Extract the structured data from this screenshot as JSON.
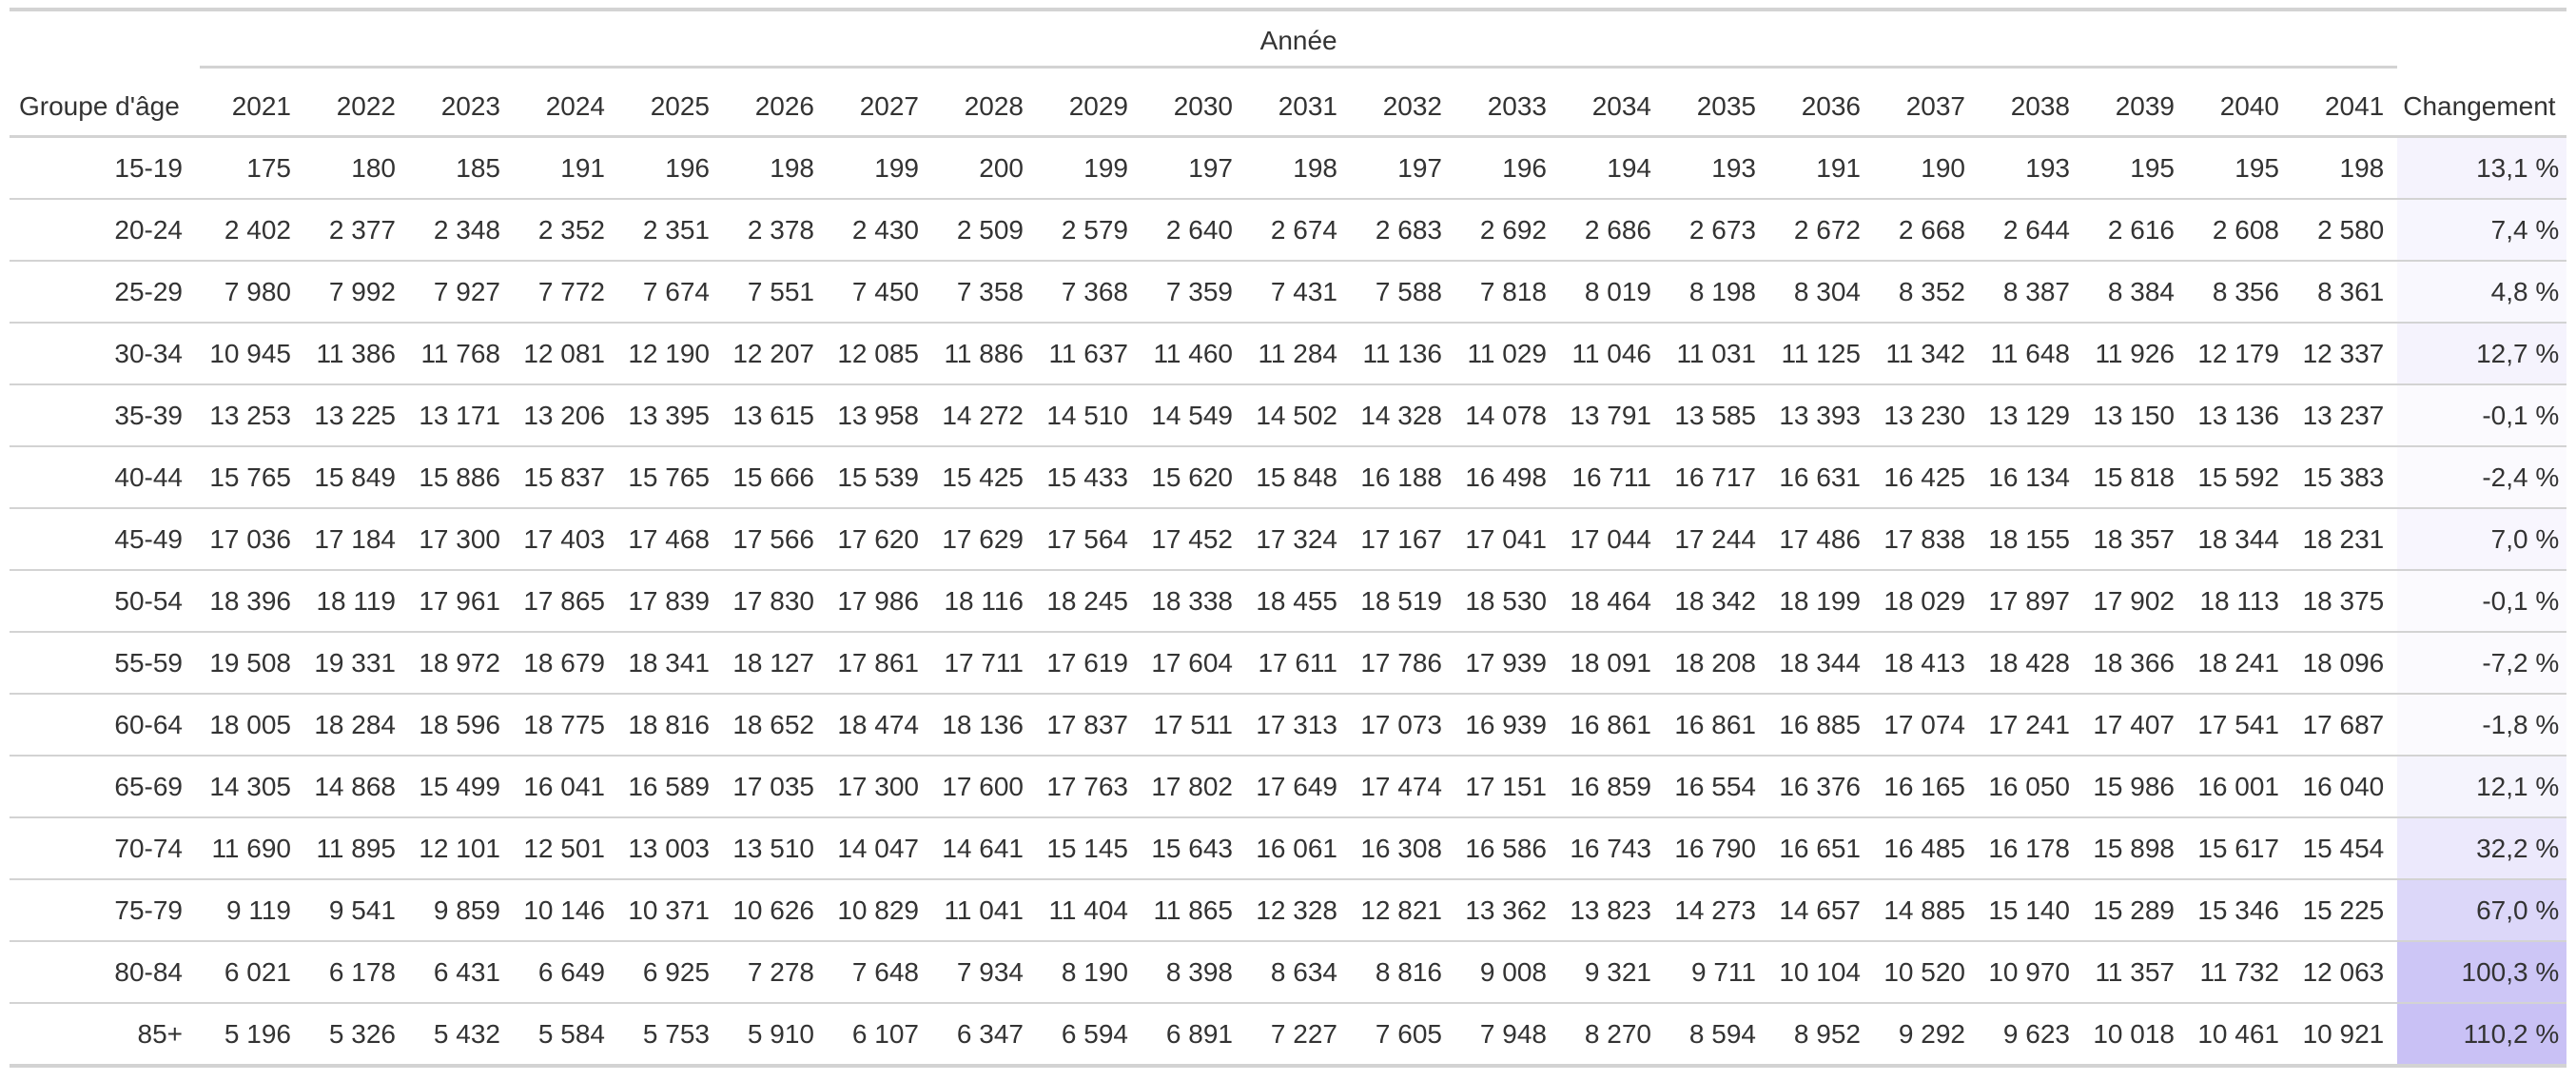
{
  "table": {
    "stub_header": "Groupe d'âge",
    "spanner_label": "Année",
    "change_header": "Changement",
    "years": [
      "2021",
      "2022",
      "2023",
      "2024",
      "2025",
      "2026",
      "2027",
      "2028",
      "2029",
      "2030",
      "2031",
      "2032",
      "2033",
      "2034",
      "2035",
      "2036",
      "2037",
      "2038",
      "2039",
      "2040",
      "2041"
    ],
    "heat_color_low": "#ffffff",
    "heat_color_high": "#c9c1f5"
  },
  "chart_data": {
    "type": "table",
    "columns": [
      "Groupe d'âge",
      "2021",
      "2022",
      "2023",
      "2024",
      "2025",
      "2026",
      "2027",
      "2028",
      "2029",
      "2030",
      "2031",
      "2032",
      "2033",
      "2034",
      "2035",
      "2036",
      "2037",
      "2038",
      "2039",
      "2040",
      "2041",
      "Changement"
    ],
    "rows": [
      {
        "group": "15-19",
        "values": [
          "175",
          "180",
          "185",
          "191",
          "196",
          "198",
          "199",
          "200",
          "199",
          "197",
          "198",
          "197",
          "196",
          "194",
          "193",
          "191",
          "190",
          "193",
          "195",
          "195",
          "198"
        ],
        "change": "13,1 %",
        "change_value": 13.1
      },
      {
        "group": "20-24",
        "values": [
          "2 402",
          "2 377",
          "2 348",
          "2 352",
          "2 351",
          "2 378",
          "2 430",
          "2 509",
          "2 579",
          "2 640",
          "2 674",
          "2 683",
          "2 692",
          "2 686",
          "2 673",
          "2 672",
          "2 668",
          "2 644",
          "2 616",
          "2 608",
          "2 580"
        ],
        "change": "7,4 %",
        "change_value": 7.4
      },
      {
        "group": "25-29",
        "values": [
          "7 980",
          "7 992",
          "7 927",
          "7 772",
          "7 674",
          "7 551",
          "7 450",
          "7 358",
          "7 368",
          "7 359",
          "7 431",
          "7 588",
          "7 818",
          "8 019",
          "8 198",
          "8 304",
          "8 352",
          "8 387",
          "8 384",
          "8 356",
          "8 361"
        ],
        "change": "4,8 %",
        "change_value": 4.8
      },
      {
        "group": "30-34",
        "values": [
          "10 945",
          "11 386",
          "11 768",
          "12 081",
          "12 190",
          "12 207",
          "12 085",
          "11 886",
          "11 637",
          "11 460",
          "11 284",
          "11 136",
          "11 029",
          "11 046",
          "11 031",
          "11 125",
          "11 342",
          "11 648",
          "11 926",
          "12 179",
          "12 337"
        ],
        "change": "12,7 %",
        "change_value": 12.7
      },
      {
        "group": "35-39",
        "values": [
          "13 253",
          "13 225",
          "13 171",
          "13 206",
          "13 395",
          "13 615",
          "13 958",
          "14 272",
          "14 510",
          "14 549",
          "14 502",
          "14 328",
          "14 078",
          "13 791",
          "13 585",
          "13 393",
          "13 230",
          "13 129",
          "13 150",
          "13 136",
          "13 237"
        ],
        "change": "-0,1 %",
        "change_value": -0.1
      },
      {
        "group": "40-44",
        "values": [
          "15 765",
          "15 849",
          "15 886",
          "15 837",
          "15 765",
          "15 666",
          "15 539",
          "15 425",
          "15 433",
          "15 620",
          "15 848",
          "16 188",
          "16 498",
          "16 711",
          "16 717",
          "16 631",
          "16 425",
          "16 134",
          "15 818",
          "15 592",
          "15 383"
        ],
        "change": "-2,4 %",
        "change_value": -2.4
      },
      {
        "group": "45-49",
        "values": [
          "17 036",
          "17 184",
          "17 300",
          "17 403",
          "17 468",
          "17 566",
          "17 620",
          "17 629",
          "17 564",
          "17 452",
          "17 324",
          "17 167",
          "17 041",
          "17 044",
          "17 244",
          "17 486",
          "17 838",
          "18 155",
          "18 357",
          "18 344",
          "18 231"
        ],
        "change": "7,0 %",
        "change_value": 7.0
      },
      {
        "group": "50-54",
        "values": [
          "18 396",
          "18 119",
          "17 961",
          "17 865",
          "17 839",
          "17 830",
          "17 986",
          "18 116",
          "18 245",
          "18 338",
          "18 455",
          "18 519",
          "18 530",
          "18 464",
          "18 342",
          "18 199",
          "18 029",
          "17 897",
          "17 902",
          "18 113",
          "18 375"
        ],
        "change": "-0,1 %",
        "change_value": -0.1
      },
      {
        "group": "55-59",
        "values": [
          "19 508",
          "19 331",
          "18 972",
          "18 679",
          "18 341",
          "18 127",
          "17 861",
          "17 711",
          "17 619",
          "17 604",
          "17 611",
          "17 786",
          "17 939",
          "18 091",
          "18 208",
          "18 344",
          "18 413",
          "18 428",
          "18 366",
          "18 241",
          "18 096"
        ],
        "change": "-7,2 %",
        "change_value": -7.2
      },
      {
        "group": "60-64",
        "values": [
          "18 005",
          "18 284",
          "18 596",
          "18 775",
          "18 816",
          "18 652",
          "18 474",
          "18 136",
          "17 837",
          "17 511",
          "17 313",
          "17 073",
          "16 939",
          "16 861",
          "16 861",
          "16 885",
          "17 074",
          "17 241",
          "17 407",
          "17 541",
          "17 687"
        ],
        "change": "-1,8 %",
        "change_value": -1.8
      },
      {
        "group": "65-69",
        "values": [
          "14 305",
          "14 868",
          "15 499",
          "16 041",
          "16 589",
          "17 035",
          "17 300",
          "17 600",
          "17 763",
          "17 802",
          "17 649",
          "17 474",
          "17 151",
          "16 859",
          "16 554",
          "16 376",
          "16 165",
          "16 050",
          "15 986",
          "16 001",
          "16 040"
        ],
        "change": "12,1 %",
        "change_value": 12.1
      },
      {
        "group": "70-74",
        "values": [
          "11 690",
          "11 895",
          "12 101",
          "12 501",
          "13 003",
          "13 510",
          "14 047",
          "14 641",
          "15 145",
          "15 643",
          "16 061",
          "16 308",
          "16 586",
          "16 743",
          "16 790",
          "16 651",
          "16 485",
          "16 178",
          "15 898",
          "15 617",
          "15 454"
        ],
        "change": "32,2 %",
        "change_value": 32.2
      },
      {
        "group": "75-79",
        "values": [
          "9 119",
          "9 541",
          "9 859",
          "10 146",
          "10 371",
          "10 626",
          "10 829",
          "11 041",
          "11 404",
          "11 865",
          "12 328",
          "12 821",
          "13 362",
          "13 823",
          "14 273",
          "14 657",
          "14 885",
          "15 140",
          "15 289",
          "15 346",
          "15 225"
        ],
        "change": "67,0 %",
        "change_value": 67.0
      },
      {
        "group": "80-84",
        "values": [
          "6 021",
          "6 178",
          "6 431",
          "6 649",
          "6 925",
          "7 278",
          "7 648",
          "7 934",
          "8 190",
          "8 398",
          "8 634",
          "8 816",
          "9 008",
          "9 321",
          "9 711",
          "10 104",
          "10 520",
          "10 970",
          "11 357",
          "11 732",
          "12 063"
        ],
        "change": "100,3 %",
        "change_value": 100.3
      },
      {
        "group": "85+",
        "values": [
          "5 196",
          "5 326",
          "5 432",
          "5 584",
          "5 753",
          "5 910",
          "6 107",
          "6 347",
          "6 594",
          "6 891",
          "7 227",
          "7 605",
          "7 948",
          "8 270",
          "8 594",
          "8 952",
          "9 292",
          "9 623",
          "10 018",
          "10 461",
          "10 921"
        ],
        "change": "110,2 %",
        "change_value": 110.2
      }
    ]
  }
}
